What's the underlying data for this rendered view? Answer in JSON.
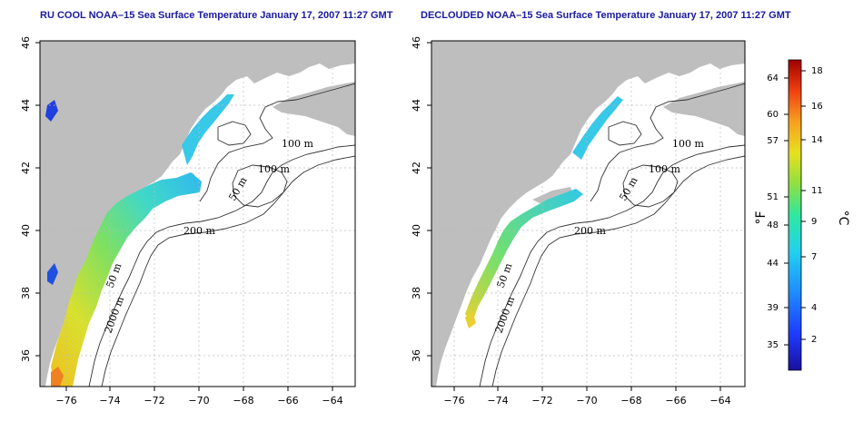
{
  "panels": [
    {
      "id": "left",
      "title": "RU COOL NOAA–15 Sea Surface Temperature January 17, 2007 11:27 GMT",
      "x_ticks": [
        "−76",
        "−74",
        "−72",
        "−70",
        "−68",
        "−66",
        "−64"
      ],
      "y_ticks": [
        "46",
        "44",
        "42",
        "40",
        "38",
        "36"
      ],
      "contour_labels": [
        "100 m",
        "100 m",
        "50 m",
        "200 m",
        "50 m",
        "2000 m"
      ]
    },
    {
      "id": "right",
      "title": "DECLOUDED NOAA–15 Sea Surface Temperature January 17, 2007 11:27 GMT",
      "x_ticks": [
        "−76",
        "−74",
        "−72",
        "−70",
        "−68",
        "−66",
        "−64"
      ],
      "y_ticks": [
        "46",
        "44",
        "42",
        "40",
        "38",
        "36"
      ],
      "contour_labels": [
        "100 m",
        "100 m",
        "50 m",
        "200 m",
        "50 m",
        "2000 m"
      ]
    }
  ],
  "colorbar": {
    "fahrenheit_unit": "°F",
    "celsius_unit": "°C",
    "fahrenheit_ticks": [
      "64",
      "60",
      "57",
      "51",
      "48",
      "44",
      "39",
      "35"
    ],
    "celsius_ticks": [
      "18",
      "16",
      "14",
      "11",
      "9",
      "7",
      "4",
      "2"
    ]
  },
  "colors": {
    "land": "#bebebe",
    "title": "#1a1aa0",
    "grid": "#bbbbbb",
    "contour": "#333333"
  }
}
